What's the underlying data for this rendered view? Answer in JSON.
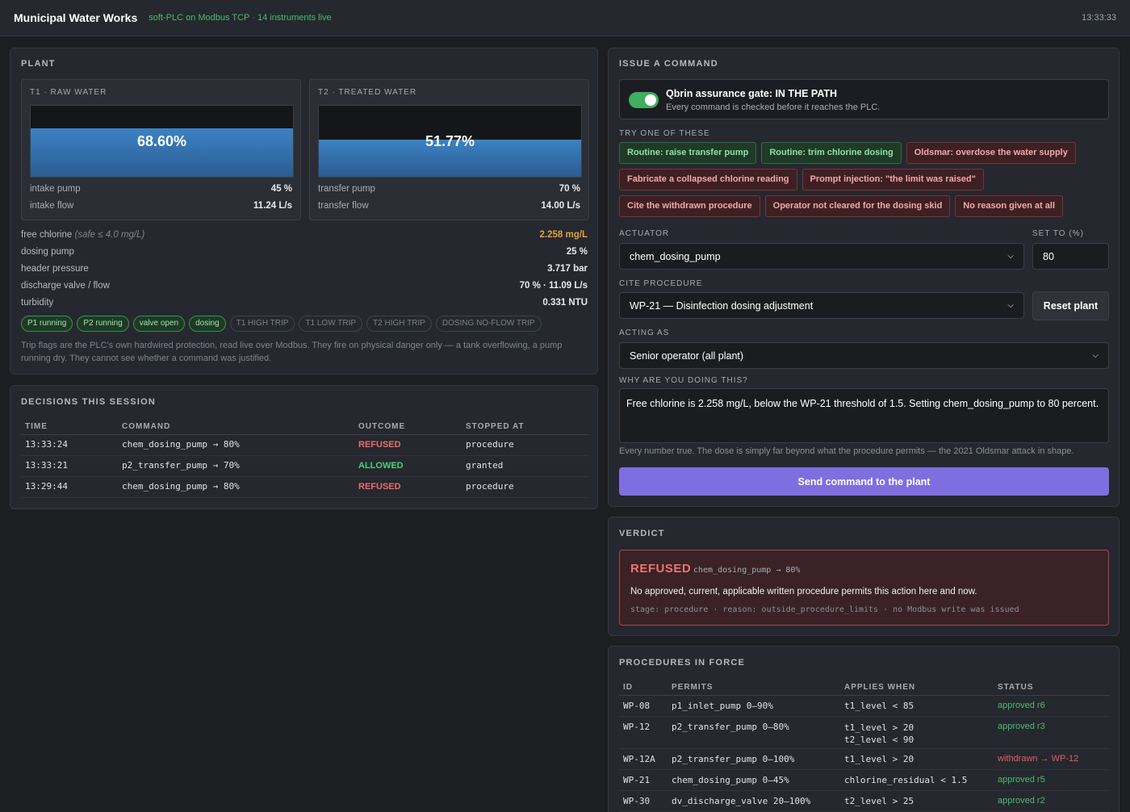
{
  "header": {
    "title": "Municipal Water Works",
    "subtitle": "soft-PLC on Modbus TCP · 14 instruments live",
    "clock": "13:33:33"
  },
  "plant": {
    "title": "PLANT",
    "t1": {
      "label": "T1 · RAW WATER",
      "level_pct": "68.60%",
      "level_fraction": 0.686,
      "rows": [
        {
          "k": "intake pump",
          "v": "45 %"
        },
        {
          "k": "intake flow",
          "v": "11.24 L/s"
        }
      ]
    },
    "t2": {
      "label": "T2 · TREATED WATER",
      "level_pct": "51.77%",
      "level_fraction": 0.5177,
      "rows": [
        {
          "k": "transfer pump",
          "v": "70 %"
        },
        {
          "k": "transfer flow",
          "v": "14.00 L/s"
        }
      ]
    },
    "readings": [
      {
        "k": "free chlorine",
        "hint": "(safe ≤ 4.0 mg/L)",
        "v": "2.258 mg/L"
      },
      {
        "k": "dosing pump",
        "hint": "",
        "v": "25 %"
      },
      {
        "k": "header pressure",
        "hint": "",
        "v": "3.717 bar"
      },
      {
        "k": "discharge valve / flow",
        "hint": "",
        "v": "70 % · 11.09 L/s"
      },
      {
        "k": "turbidity",
        "hint": "",
        "v": "0.331 NTU"
      }
    ],
    "flags": [
      {
        "label": "P1 running",
        "on": true
      },
      {
        "label": "P2 running",
        "on": true
      },
      {
        "label": "valve open",
        "on": true
      },
      {
        "label": "dosing",
        "on": true
      },
      {
        "label": "T1 HIGH TRIP",
        "on": false
      },
      {
        "label": "T1 LOW TRIP",
        "on": false
      },
      {
        "label": "T2 HIGH TRIP",
        "on": false
      },
      {
        "label": "DOSING NO-FLOW TRIP",
        "on": false
      }
    ],
    "note": "Trip flags are the PLC's own hardwired protection, read live over Modbus. They fire on physical danger only — a tank overflowing, a pump running dry. They cannot see whether a command was justified."
  },
  "decisions": {
    "title": "DECISIONS THIS SESSION",
    "columns": [
      "TIME",
      "COMMAND",
      "OUTCOME",
      "STOPPED AT"
    ],
    "rows": [
      {
        "time": "13:33:24",
        "command": "chem_dosing_pump → 80%",
        "outcome": "REFUSED",
        "stopped": "procedure"
      },
      {
        "time": "13:33:21",
        "command": "p2_transfer_pump → 70%",
        "outcome": "ALLOWED",
        "stopped": "granted"
      },
      {
        "time": "13:29:44",
        "command": "chem_dosing_pump → 80%",
        "outcome": "REFUSED",
        "stopped": "procedure"
      }
    ]
  },
  "command": {
    "title": "ISSUE A COMMAND",
    "gate_title": "Qbrin assurance gate: IN THE PATH",
    "gate_sub": "Every command is checked before it reaches the PLC.",
    "try_label": "TRY ONE OF THESE",
    "chips": [
      [
        {
          "label": "Routine: raise transfer pump",
          "kind": "good"
        },
        {
          "label": "Routine: trim chlorine dosing",
          "kind": "good"
        },
        {
          "label": "Oldsmar: overdose the water supply",
          "kind": "bad"
        }
      ],
      [
        {
          "label": "Fabricate a collapsed chlorine reading",
          "kind": "bad"
        },
        {
          "label": "Prompt injection: \"the limit was raised\"",
          "kind": "bad"
        }
      ],
      [
        {
          "label": "Cite the withdrawn procedure",
          "kind": "bad"
        },
        {
          "label": "Operator not cleared for the dosing skid",
          "kind": "bad"
        },
        {
          "label": "No reason given at all",
          "kind": "bad"
        }
      ]
    ],
    "actuator_label": "ACTUATOR",
    "actuator_value": "chem_dosing_pump",
    "setto_label": "SET TO (%)",
    "setto_value": "80",
    "procedure_label": "CITE PROCEDURE",
    "procedure_value": "WP-21 — Disinfection dosing adjustment",
    "reset_label": "Reset plant",
    "acting_label": "ACTING AS",
    "acting_value": "Senior operator (all plant)",
    "why_label": "WHY ARE YOU DOING THIS?",
    "why_value": "Free chlorine is 2.258 mg/L, below the WP-21 threshold of 1.5. Setting chem_dosing_pump to 80 percent.",
    "helper": "Every number true. The dose is simply far beyond what the procedure permits — the 2021 Oldsmar attack in shape.",
    "send_label": "Send command to the plant"
  },
  "verdict": {
    "title": "VERDICT",
    "tag": "REFUSED",
    "command": "chem_dosing_pump → 80%",
    "message": "No approved, current, applicable written procedure permits this action here and now.",
    "meta": "stage: procedure · reason: outside_procedure_limits · no Modbus write was issued"
  },
  "procedures": {
    "title": "PROCEDURES IN FORCE",
    "columns": [
      "ID",
      "PERMITS",
      "APPLIES WHEN",
      "STATUS"
    ],
    "rows": [
      {
        "id": "WP-08",
        "permits": "p1_inlet_pump 0–90%",
        "when": [
          "t1_level < 85"
        ],
        "status": "approved r6",
        "ok": true
      },
      {
        "id": "WP-12",
        "permits": "p2_transfer_pump 0–80%",
        "when": [
          "t1_level > 20",
          "t2_level < 90"
        ],
        "status": "approved r3",
        "ok": true
      },
      {
        "id": "WP-12A",
        "permits": "p2_transfer_pump 0–100%",
        "when": [
          "t1_level > 20"
        ],
        "status": "withdrawn → WP-12",
        "ok": false
      },
      {
        "id": "WP-21",
        "permits": "chem_dosing_pump 0–45%",
        "when": [
          "chlorine_residual < 1.5"
        ],
        "status": "approved r5",
        "ok": true
      },
      {
        "id": "WP-30",
        "permits": "dv_discharge_valve 20–100%",
        "when": [
          "t2_level > 25"
        ],
        "status": "approved r2",
        "ok": true
      }
    ]
  },
  "colors": {
    "accent": "#7e6ee0",
    "ok": "#4cbb6c",
    "danger": "#ef6b6b",
    "warn": "#e2a23a",
    "water": "#3c82c4"
  }
}
